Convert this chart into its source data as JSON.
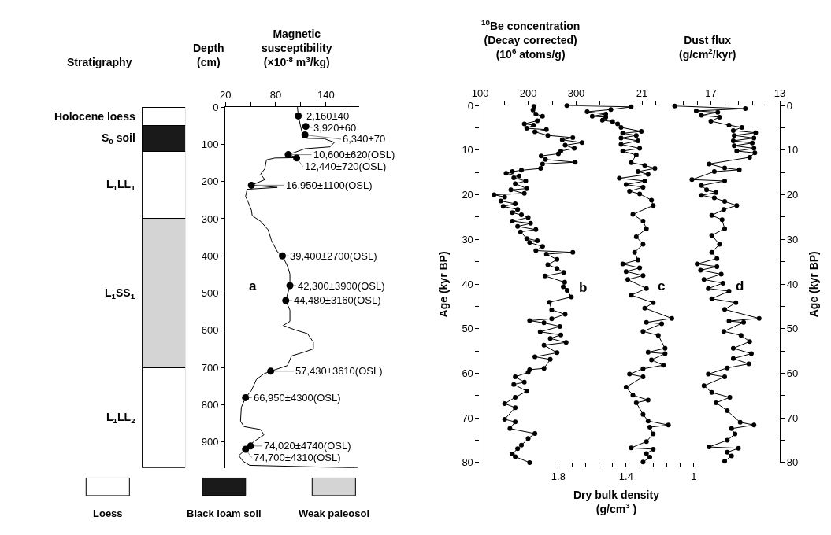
{
  "chart_data": [
    {
      "type": "bar",
      "title": "Stratigraphy",
      "stacked": true,
      "categories": [
        null
      ],
      "ylim": [
        970,
        0
      ],
      "tick_labels": false,
      "series": [
        {
          "name": "Holocene loess",
          "color": "#ffffff",
          "values": [
            50
          ]
        },
        {
          "name": "S$_{0}$ soil",
          "color": "#1a1a1a",
          "values": [
            70
          ]
        },
        {
          "name": "L$_{1}$LL$_{1}$",
          "color": "#ffffff",
          "values": [
            180
          ]
        },
        {
          "name": "L$_{1}$SS$_{1}$",
          "color": "#d4d4d4",
          "values": [
            400
          ]
        },
        {
          "name": "L$_{1}$LL$_{2}$",
          "color": "#ffffff",
          "values": [
            270
          ]
        }
      ],
      "annotations": [
        "Loess",
        "Black loam soil",
        "Weak paleosol"
      ]
    },
    {
      "type": "line",
      "title": "Magnetic\nsusceptibility\n(×10$^{-8}$ m$^{3}$/kg)",
      "ylabel": "Depth\n(cm)",
      "xlim": [
        20,
        180
      ],
      "xticks": [
        20,
        {
          "value": 50,
          "label": null
        },
        80,
        {
          "value": 110,
          "label": null
        },
        140,
        {
          "value": 170,
          "label": null
        }
      ],
      "ylim": [
        970,
        0
      ],
      "yticks": [
        0,
        100,
        200,
        300,
        400,
        500,
        600,
        700,
        800,
        900
      ],
      "series": [
        {
          "type": "line",
          "color": "#000000",
          "marker": "none",
          "x": [
            106,
            107,
            110,
            112,
            117,
            138,
            150,
            145,
            115,
            95,
            106,
            79,
            69,
            67,
            62,
            67,
            51,
            82,
            46,
            44,
            47,
            51,
            52,
            62,
            71,
            75,
            82,
            88,
            94,
            97,
            97,
            92,
            97,
            97,
            89,
            102,
            118,
            125,
            125,
            115,
            99,
            94,
            74,
            66,
            57,
            51,
            44,
            39,
            38,
            42,
            62,
            66,
            56,
            49,
            44,
            36,
            41,
            49,
            178
          ],
          "values": [
            0,
            24,
            54,
            72,
            84,
            85,
            95,
            107,
            112,
            128,
            136,
            137,
            142,
            166,
            180,
            195,
            210,
            216,
            221,
            240,
            255,
            277,
            292,
            307,
            330,
            359,
            389,
            400,
            427,
            449,
            480,
            520,
            546,
            576,
            587,
            598,
            609,
            632,
            650,
            658,
            669,
            695,
            710,
            717,
            732,
            762,
            781,
            807,
            844,
            859,
            867,
            881,
            896,
            908,
            920,
            937,
            952,
            963,
            970
          ]
        },
        {
          "type": "scatter",
          "color": "#000000",
          "marker": "circle",
          "x": [
            107,
            116,
            115,
            95,
            105,
            51,
            88,
            97,
            92,
            74,
            44,
            50,
            44
          ],
          "values": [
            24,
            52,
            75,
            128,
            137,
            210,
            400,
            480,
            520,
            710,
            781,
            911,
            920
          ]
        }
      ],
      "annotations": [
        "a",
        {
          "text": "2,160±40",
          "x": 107,
          "y": 24
        },
        {
          "text": "3,920±60",
          "x": 116,
          "y": 52
        },
        {
          "text": "6,340±70",
          "x": 115,
          "y": 75
        },
        {
          "text": "10,600±620(OSL)",
          "x": 95,
          "y": 128
        },
        {
          "text": "12,440±720(OSL)",
          "x": 105,
          "y": 137
        },
        {
          "text": "16,950±1100(OSL)",
          "x": 51,
          "y": 210
        },
        {
          "text": "39,400±2700(OSL)",
          "x": 88,
          "y": 400
        },
        {
          "text": "42,300±3900(OSL)",
          "x": 97,
          "y": 480
        },
        {
          "text": "44,480±3160(OSL)",
          "x": 92,
          "y": 520
        },
        {
          "text": "57,430±3610(OSL)",
          "x": 74,
          "y": 710
        },
        {
          "text": "66,950±4300(OSL)",
          "x": 44,
          "y": 781
        },
        {
          "text": "74,020±4740(OSL)",
          "x": 50,
          "y": 911
        },
        {
          "text": "74,700±4310(OSL)",
          "x": 44,
          "y": 920
        }
      ]
    },
    {
      "type": "line",
      "title": "$^{10}$Be concentration\n(Decay corrected)\n(10$^{6}$ atoms/g)",
      "ylabel": "Age (kyr BP)",
      "marker": "circle",
      "xlim": [
        100,
        350
      ],
      "xticks": [
        100,
        {
          "value": 150,
          "label": null
        },
        200,
        {
          "value": 250,
          "label": null
        },
        300,
        {
          "value": 350,
          "label": null
        }
      ],
      "ylim": [
        80,
        0
      ],
      "yticks": [
        0,
        {
          "value": 5,
          "label": null
        },
        10,
        {
          "value": 15,
          "label": null
        },
        20,
        {
          "value": 25,
          "label": null
        },
        30,
        {
          "value": 35,
          "label": null
        },
        40,
        {
          "value": 45,
          "label": null
        },
        50,
        {
          "value": 55,
          "label": null
        },
        60,
        {
          "value": 65,
          "label": null
        },
        70,
        {
          "value": 75,
          "label": null
        },
        80
      ],
      "series": [
        {
          "color": "#000000",
          "x": [
            212,
            210,
            216,
            230,
            219,
            192,
            211,
            197,
            238,
            214,
            241,
            293,
            271,
            312,
            277,
            296,
            268,
            263,
            227,
            236,
            298,
            230,
            226,
            186,
            167,
            154,
            181,
            170,
            195,
            173,
            197,
            164,
            192,
            129,
            151,
            143,
            173,
            148,
            178,
            167,
            186,
            200,
            167,
            205,
            178,
            216,
            184,
            197,
            219,
            203,
            230,
            216,
            293,
            238,
            260,
            241,
            260,
            274,
            235,
            276,
            273,
            281,
            290,
            244,
            249,
            277,
            249,
            203,
            233,
            266,
            225,
            268,
            246,
            279,
            233,
            260,
            214,
            246,
            233,
            203,
            200,
            173,
            192,
            170,
            197,
            173,
            151,
            173,
            151,
            173,
            162,
            214,
            200,
            186,
            178,
            167,
            173,
            203
          ],
          "values": [
            0.2,
            1.0,
            1.9,
            2.4,
            3.4,
            4.1,
            4.4,
            5.1,
            5.4,
            5.9,
            6.7,
            7.2,
            7.7,
            8.3,
            8.9,
            9.6,
            10.2,
            10.8,
            11.3,
            12.1,
            12.7,
            13.1,
            14.1,
            14.5,
            14.8,
            15.2,
            15.8,
            16.2,
            16.9,
            17.5,
            18.6,
            18.9,
            19.7,
            20.0,
            20.5,
            21.4,
            22.0,
            22.6,
            23.3,
            24.0,
            24.5,
            25.1,
            25.9,
            26.4,
            27.1,
            27.8,
            28.3,
            29.8,
            30.3,
            30.7,
            31.6,
            32.5,
            32.9,
            33.3,
            34.5,
            35.7,
            36.5,
            37.4,
            38.2,
            39.6,
            40.6,
            41.4,
            42.9,
            44.1,
            45.8,
            46.8,
            47.8,
            48.2,
            48.7,
            49.5,
            50.7,
            51.4,
            52.2,
            53.1,
            53.7,
            55.4,
            56.3,
            56.9,
            58.9,
            59.2,
            59.8,
            60.8,
            62.0,
            62.5,
            64.0,
            65.4,
            66.8,
            67.7,
            70.3,
            70.9,
            72.4,
            73.5,
            74.6,
            76.1,
            76.9,
            78.1,
            78.7,
            80.0
          ]
        }
      ],
      "annotations": [
        "b"
      ]
    },
    {
      "type": "line",
      "xlabel": "Dry bulk density\n(g/cm$^{3}$ )",
      "marker": "circle",
      "tick_labels": "x",
      "xlim": [
        1.8,
        1
      ],
      "xticks": [
        1.8,
        {
          "value": 1.72,
          "label": null
        },
        {
          "value": 1.64,
          "label": null
        },
        {
          "value": 1.56,
          "label": null
        },
        {
          "value": 1.48,
          "label": null
        },
        1.4,
        {
          "value": 1.32,
          "label": null
        },
        {
          "value": 1.24,
          "label": null
        },
        {
          "value": 1.16,
          "label": null
        },
        {
          "value": 1.08,
          "label": null
        },
        1
      ],
      "ylim": [
        80,
        0
      ],
      "series": [
        {
          "color": "#000000",
          "x": [
            1.75,
            1.37,
            1.49,
            1.63,
            1.52,
            1.6,
            1.52,
            1.54,
            1.48,
            1.45,
            1.43,
            1.31,
            1.42,
            1.34,
            1.43,
            1.33,
            1.43,
            1.32,
            1.42,
            1.34,
            1.37,
            1.29,
            1.23,
            1.33,
            1.27,
            1.44,
            1.29,
            1.4,
            1.3,
            1.38,
            1.32,
            1.25,
            1.24,
            1.36,
            1.3,
            1.28,
            1.34,
            1.3,
            1.35,
            1.33,
            1.42,
            1.32,
            1.4,
            1.3,
            1.39,
            1.28,
            1.37,
            1.24,
            1.29,
            1.13,
            1.28,
            1.19,
            1.3,
            1.21,
            1.17,
            1.27,
            1.17,
            1.25,
            1.18,
            1.3,
            1.38,
            1.3,
            1.4,
            1.36,
            1.27,
            1.34,
            1.3,
            1.27,
            1.15,
            1.26,
            1.24,
            1.28,
            1.37,
            1.24,
            1.28,
            1.26,
            1.3
          ],
          "values": [
            0.0,
            0.3,
            0.9,
            1.4,
            1.9,
            2.4,
            2.6,
            3.3,
            3.6,
            4.1,
            4.9,
            5.8,
            6.2,
            6.7,
            7.3,
            7.9,
            8.7,
            9.6,
            10.2,
            11.1,
            12.8,
            13.4,
            14.1,
            14.8,
            15.4,
            16.3,
            16.9,
            17.7,
            18.3,
            19.2,
            19.8,
            21.2,
            22.4,
            24.4,
            25.9,
            27.6,
            29.4,
            31.1,
            32.9,
            34.6,
            35.5,
            36.4,
            37.2,
            38.1,
            39.0,
            41.0,
            42.5,
            44.2,
            45.4,
            47.7,
            48.6,
            48.9,
            50.6,
            51.5,
            54.4,
            55.3,
            55.6,
            57.0,
            58.2,
            59.0,
            60.2,
            60.8,
            63.1,
            64.9,
            66.0,
            66.6,
            69.2,
            70.7,
            71.6,
            72.1,
            73.6,
            75.3,
            76.7,
            77.0,
            78.0,
            78.8,
            79.9
          ]
        }
      ],
      "annotations": [
        "c"
      ]
    },
    {
      "type": "line",
      "title": "Dust flux\n(g/cm$^{2}$/kyr)",
      "ylabel": "Age (kyr BP)",
      "marker": "circle",
      "xlim": [
        21,
        13
      ],
      "xticks": [
        21,
        {
          "value": 20.2,
          "label": null
        },
        {
          "value": 19.4,
          "label": null
        },
        {
          "value": 18.6,
          "label": null
        },
        {
          "value": 17.8,
          "label": null
        },
        17,
        {
          "value": 16.2,
          "label": null
        },
        {
          "value": 15.4,
          "label": null
        },
        {
          "value": 14.6,
          "label": null
        },
        {
          "value": 13.8,
          "label": null
        },
        13
      ],
      "ylim": [
        80,
        0
      ],
      "yticks": [
        0,
        {
          "value": 5,
          "label": null
        },
        10,
        {
          "value": 15,
          "label": null
        },
        20,
        {
          "value": 25,
          "label": null
        },
        30,
        {
          "value": 35,
          "label": null
        },
        40,
        {
          "value": 45,
          "label": null
        },
        50,
        {
          "value": 55,
          "label": null
        },
        60,
        {
          "value": 65,
          "label": null
        },
        70,
        {
          "value": 75,
          "label": null
        },
        80
      ],
      "series": [
        {
          "color": "#000000",
          "x": [
            19.1,
            15.0,
            17.85,
            16.6,
            17.55,
            16.5,
            17.0,
            15.95,
            15.2,
            15.7,
            14.4,
            15.65,
            14.5,
            15.7,
            14.6,
            15.65,
            14.5,
            15.5,
            14.45,
            14.75,
            17.1,
            16.2,
            15.35,
            16.8,
            18.1,
            16.2,
            17.55,
            17.25,
            16.7,
            17.55,
            16.8,
            16.2,
            15.5,
            16.25,
            16.95,
            16.35,
            16.2,
            16.95,
            16.5,
            16.95,
            16.65,
            17.8,
            16.65,
            17.6,
            16.4,
            17.4,
            16.3,
            17.15,
            15.95,
            16.95,
            15.55,
            16.2,
            14.2,
            15.95,
            15.1,
            16.25,
            15.25,
            14.75,
            15.7,
            14.65,
            15.7,
            14.8,
            16.05,
            17.15,
            16.2,
            17.4,
            16.95,
            15.9,
            16.7,
            16.05,
            15.3,
            14.5,
            15.8,
            15.6,
            16.05,
            17.1,
            15.4,
            16.05,
            15.8,
            16.2
          ],
          "values": [
            0.1,
            0.7,
            1.2,
            1.5,
            2.2,
            2.6,
            3.5,
            4.4,
            4.9,
            5.6,
            6.1,
            6.7,
            7.3,
            7.9,
            8.4,
            9.0,
            9.6,
            10.2,
            10.6,
            11.6,
            13.1,
            14.0,
            14.4,
            14.8,
            16.6,
            16.9,
            17.9,
            18.9,
            19.5,
            20.1,
            20.7,
            21.5,
            22.4,
            23.3,
            24.6,
            25.6,
            27.6,
            29.1,
            31.1,
            32.9,
            34.3,
            35.5,
            36.1,
            36.9,
            37.8,
            39.0,
            39.8,
            41.0,
            41.6,
            43.3,
            44.2,
            45.7,
            47.7,
            48.3,
            48.6,
            50.6,
            51.5,
            52.9,
            54.4,
            55.6,
            56.7,
            57.9,
            58.8,
            60.2,
            60.8,
            62.8,
            64.3,
            65.4,
            66.6,
            68.4,
            71.0,
            71.6,
            72.4,
            73.6,
            75.0,
            76.5,
            76.8,
            77.7,
            78.5,
            79.7
          ]
        }
      ],
      "annotations": [
        "d"
      ]
    }
  ]
}
